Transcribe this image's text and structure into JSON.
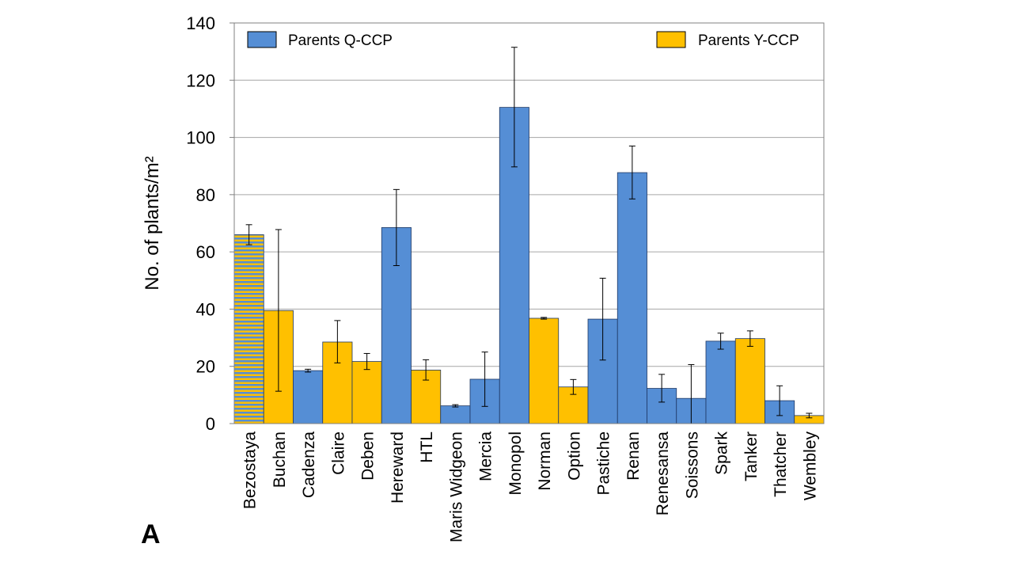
{
  "panel_label": "A",
  "chart_data": {
    "type": "bar",
    "title": "",
    "xlabel": "",
    "ylabel": "No. of plants/m²",
    "ylim": [
      0,
      140
    ],
    "yticks": [
      0,
      20,
      40,
      60,
      80,
      100,
      120,
      140
    ],
    "grid": true,
    "legend_position": "top",
    "legend": [
      {
        "name": "Parents Q-CCP",
        "color": "#558ED5",
        "position": "top-left"
      },
      {
        "name": "Parents Y-CCP",
        "color": "#FFC000",
        "position": "top-right"
      }
    ],
    "categories": [
      "Bezostaya",
      "Buchan",
      "Cadenza",
      "Claire",
      "Deben",
      "Hereward",
      "HTL",
      "Maris Widgeon",
      "Mercia",
      "Monopol",
      "Norman",
      "Option",
      "Pastiche",
      "Renan",
      "Renesansa",
      "Soissons",
      "Spark",
      "Tanker",
      "Thatcher",
      "Wembley"
    ],
    "values": [
      66,
      39.5,
      18.5,
      28.5,
      21.7,
      68.5,
      18.7,
      6.2,
      15.5,
      110.5,
      36.8,
      12.8,
      36.5,
      87.7,
      12.3,
      8.8,
      28.8,
      29.7,
      8,
      2.8
    ],
    "error_low": [
      62.5,
      11.3,
      18,
      21.2,
      18.9,
      55.2,
      15.2,
      5.8,
      6,
      89.7,
      36.5,
      10.2,
      22.2,
      78.5,
      7.5,
      0,
      26,
      27,
      2.8,
      2
    ],
    "error_high": [
      69.5,
      67.8,
      19,
      36,
      24.5,
      81.8,
      22.3,
      6.6,
      25,
      131.5,
      37.1,
      15.4,
      50.8,
      97,
      17.2,
      20.6,
      31.6,
      32.4,
      13.2,
      3.6
    ],
    "groups": [
      "both",
      "Y-CCP",
      "Q-CCP",
      "Y-CCP",
      "Y-CCP",
      "Q-CCP",
      "Y-CCP",
      "Q-CCP",
      "Q-CCP",
      "Q-CCP",
      "Y-CCP",
      "Y-CCP",
      "Q-CCP",
      "Q-CCP",
      "Q-CCP",
      "Q-CCP",
      "Q-CCP",
      "Y-CCP",
      "Q-CCP",
      "Y-CCP"
    ],
    "colors": {
      "Q-CCP": "#558ED5",
      "Y-CCP": "#FFC000",
      "grid": "#a6a6a6",
      "axis": "#808080"
    }
  }
}
